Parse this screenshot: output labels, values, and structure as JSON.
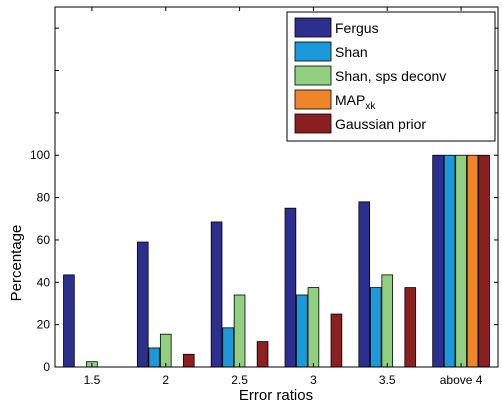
{
  "chart_data": {
    "type": "bar",
    "xlabel": "Error ratios",
    "ylabel": "Percentage",
    "ylim": [
      0,
      170
    ],
    "yticks": [
      0,
      20,
      40,
      60,
      80,
      100
    ],
    "categories": [
      "1.5",
      "2",
      "2.5",
      "3",
      "3.5",
      "above 4"
    ],
    "grid": false,
    "legend_position": "top-right",
    "series": [
      {
        "name": "Fergus",
        "legend_main": "Fergus",
        "legend_sub": "",
        "color": "#2d2f8f",
        "values": [
          43.5,
          59,
          68.5,
          75,
          78,
          100
        ]
      },
      {
        "name": "Shan",
        "legend_main": "Shan",
        "legend_sub": "",
        "color": "#1a9ad8",
        "values": [
          0,
          9,
          18.5,
          34,
          37.5,
          100
        ]
      },
      {
        "name": "Shan, sps deconv",
        "legend_main": "Shan, sps deconv",
        "legend_sub": "",
        "color": "#90d080",
        "values": [
          2.5,
          15.5,
          34,
          37.5,
          43.5,
          100
        ]
      },
      {
        "name": "MAPxk",
        "legend_main": "MAP",
        "legend_sub": "xk",
        "color": "#f0842a",
        "values": [
          0,
          0,
          0,
          0,
          0,
          100
        ]
      },
      {
        "name": "Gaussian prior",
        "legend_main": "Gaussian prior",
        "legend_sub": "",
        "color": "#8c2020",
        "values": [
          0,
          6,
          12,
          25,
          37.5,
          100
        ]
      }
    ]
  }
}
